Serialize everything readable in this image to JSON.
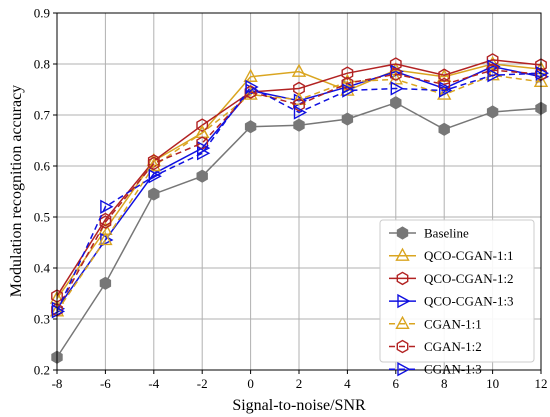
{
  "chart_data": {
    "type": "line",
    "title": "",
    "xlabel": "Signal-to-noise/SNR",
    "ylabel": "Modulation recognition accuracy",
    "x": [
      -8,
      -6,
      -4,
      -2,
      0,
      2,
      4,
      6,
      8,
      10,
      12
    ],
    "xticks": [
      "-8",
      "-6",
      "-4",
      "-2",
      "0",
      "2",
      "4",
      "6",
      "8",
      "10",
      "12"
    ],
    "xlim": [
      -8,
      12
    ],
    "ylim": [
      0.2,
      0.9
    ],
    "yticks": [
      "0.2",
      "0.3",
      "0.4",
      "0.5",
      "0.6",
      "0.7",
      "0.8",
      "0.9"
    ],
    "grid": true,
    "legend_position": "bottom-right",
    "series": [
      {
        "name": "Baseline",
        "color": "#777777",
        "marker": "hexagon",
        "dashed": false,
        "values": [
          0.225,
          0.37,
          0.545,
          0.58,
          0.677,
          0.68,
          0.692,
          0.724,
          0.672,
          0.706,
          0.713
        ]
      },
      {
        "name": "QCO-CGAN-1:1",
        "color": "#DAA520",
        "marker": "triangle-up",
        "dashed": false,
        "values": [
          0.34,
          0.475,
          0.61,
          0.665,
          0.775,
          0.785,
          0.748,
          0.788,
          0.775,
          0.8,
          0.79
        ]
      },
      {
        "name": "QCO-CGAN-1:2",
        "color": "#B22222",
        "marker": "hexagon-open",
        "dashed": false,
        "values": [
          0.345,
          0.495,
          0.61,
          0.68,
          0.745,
          0.752,
          0.782,
          0.8,
          0.778,
          0.808,
          0.798
        ]
      },
      {
        "name": "QCO-CGAN-1:3",
        "color": "#1010E0",
        "marker": "triangle-right",
        "dashed": false,
        "values": [
          0.32,
          0.455,
          0.585,
          0.635,
          0.748,
          0.728,
          0.755,
          0.785,
          0.752,
          0.795,
          0.775
        ]
      },
      {
        "name": "CGAN-1:1",
        "color": "#DAA520",
        "marker": "triangle-up",
        "dashed": true,
        "values": [
          0.315,
          0.455,
          0.6,
          0.665,
          0.74,
          0.73,
          0.765,
          0.77,
          0.74,
          0.778,
          0.765
        ]
      },
      {
        "name": "CGAN-1:2",
        "color": "#B22222",
        "marker": "hexagon-open",
        "dashed": true,
        "values": [
          0.318,
          0.49,
          0.605,
          0.645,
          0.745,
          0.72,
          0.762,
          0.78,
          0.76,
          0.788,
          0.78
        ]
      },
      {
        "name": "CGAN-1:3",
        "color": "#1010E0",
        "marker": "triangle-right",
        "dashed": true,
        "values": [
          0.315,
          0.52,
          0.58,
          0.625,
          0.755,
          0.705,
          0.748,
          0.752,
          0.748,
          0.778,
          0.782
        ]
      }
    ]
  }
}
